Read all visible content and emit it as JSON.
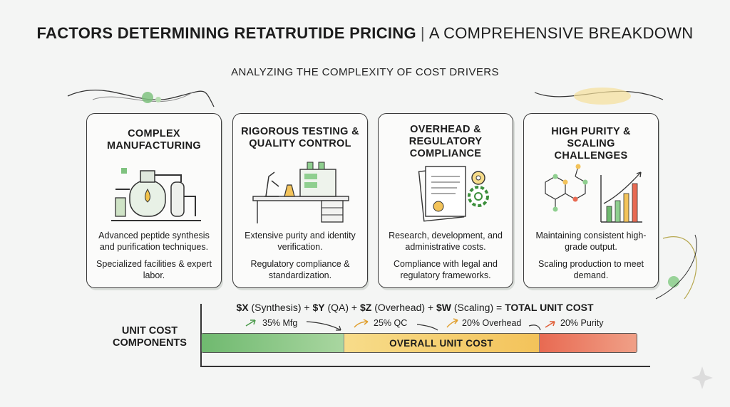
{
  "header": {
    "title_strong": "FACTORS DETERMINING RETATRUTIDE PRICING",
    "separator": "|",
    "title_light": "A COMPREHENSIVE BREAKDOWN",
    "subtitle": "ANALYZING THE COMPLEXITY OF COST DRIVERS"
  },
  "cards": [
    {
      "title": "COMPLEX MANUFACTURING",
      "icon": "reactor-icon",
      "text1": "Advanced peptide synthesis and purification techniques.",
      "text2": "Specialized facilities & expert labor."
    },
    {
      "title": "RIGOROUS TESTING & QUALITY CONTROL",
      "icon": "lab-bench-icon",
      "text1": "Extensive purity and identity verification.",
      "text2": "Regulatory compliance & standardization."
    },
    {
      "title": "OVERHEAD & REGULATORY COMPLIANCE",
      "icon": "certificate-gears-icon",
      "text1": "Research, development, and administrative costs.",
      "text2": "Compliance with legal and regulatory frameworks."
    },
    {
      "title": "HIGH PURITY & SCALING CHALLENGES",
      "icon": "molecule-growth-chart-icon",
      "text1": "Maintaining consistent high-grade output.",
      "text2": "Scaling production to meet demand."
    }
  ],
  "formula": {
    "x_var": "$X",
    "x_label": " (Synthesis) + ",
    "y_var": "$Y",
    "y_label": " (QA) + ",
    "z_var": "$Z",
    "z_label": " (Overhead) + ",
    "w_var": "$W",
    "w_label": " (Scaling) = ",
    "total": "TOTAL UNIT COST"
  },
  "unit_cost": {
    "label": "UNIT COST COMPONENTS",
    "segments": [
      {
        "label": "35% Mfg",
        "share": 35,
        "color": "#6fb96f"
      },
      {
        "label": "25% QC",
        "share": 25,
        "color": "#f3c35a"
      },
      {
        "label": "20% Overhead",
        "share": 20,
        "color": "#f3c35a"
      },
      {
        "label": "20% Purity",
        "share": 20,
        "color": "#e86a52"
      }
    ],
    "bar_label": "OVERALL UNIT COST"
  }
}
